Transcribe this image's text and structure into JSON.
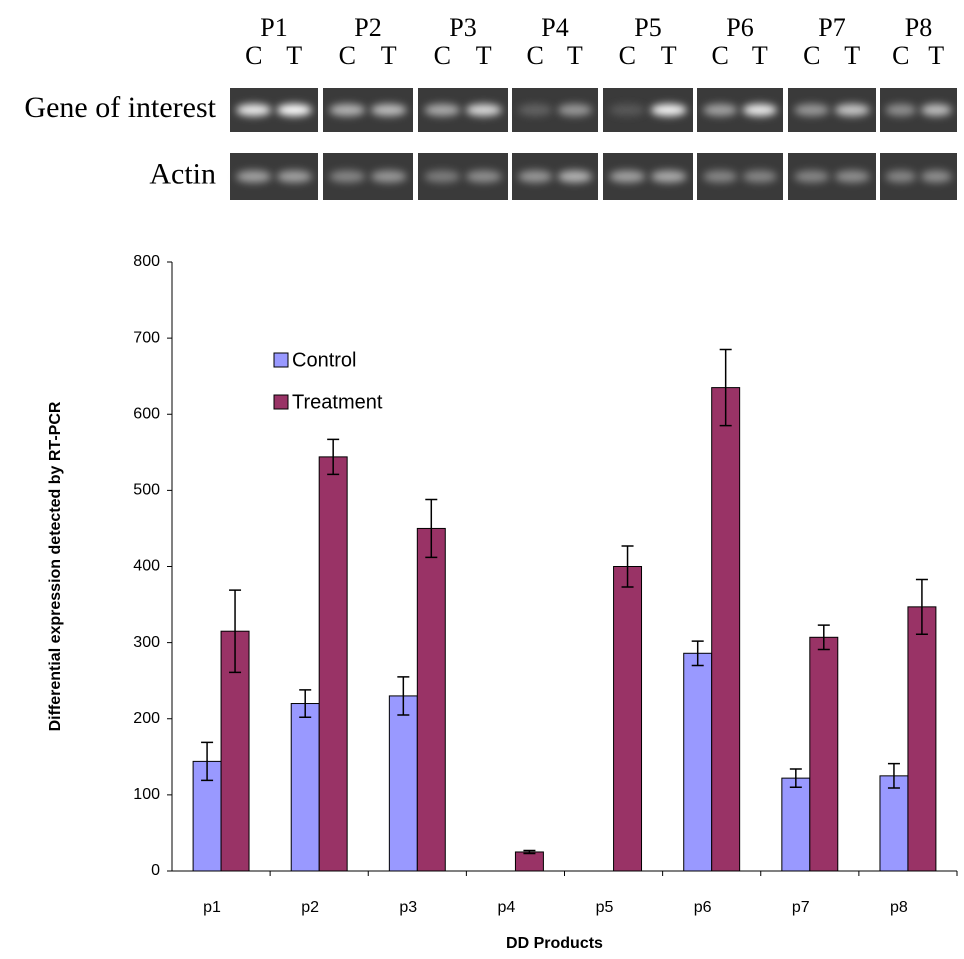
{
  "gel": {
    "groups": [
      "P1",
      "P2",
      "P3",
      "P4",
      "P5",
      "P6",
      "P7",
      "P8"
    ],
    "lane_labels": [
      "C",
      "T"
    ],
    "rows": [
      "Gene of interest",
      "Actin"
    ]
  },
  "chart_data": {
    "type": "bar",
    "x_label": "DD Products",
    "y_label": "Differential expression detected by RT-PCR",
    "categories": [
      "p1",
      "p2",
      "p3",
      "p4",
      "p5",
      "p6",
      "p7",
      "p8"
    ],
    "series": [
      {
        "name": "Control",
        "color": "#9999ff",
        "values": [
          144,
          220,
          230,
          0,
          0,
          286,
          122,
          125
        ],
        "errors": [
          25,
          18,
          25,
          null,
          null,
          16,
          12,
          16
        ]
      },
      {
        "name": "Treatment",
        "color": "#993366",
        "values": [
          315,
          544,
          450,
          25,
          400,
          635,
          307,
          347
        ],
        "errors": [
          54,
          23,
          38,
          2,
          27,
          50,
          16,
          36
        ]
      }
    ],
    "ylim": [
      0,
      800
    ],
    "yticks": [
      0,
      100,
      200,
      300,
      400,
      500,
      600,
      700,
      800
    ],
    "grid": false,
    "legend": "upper left"
  }
}
